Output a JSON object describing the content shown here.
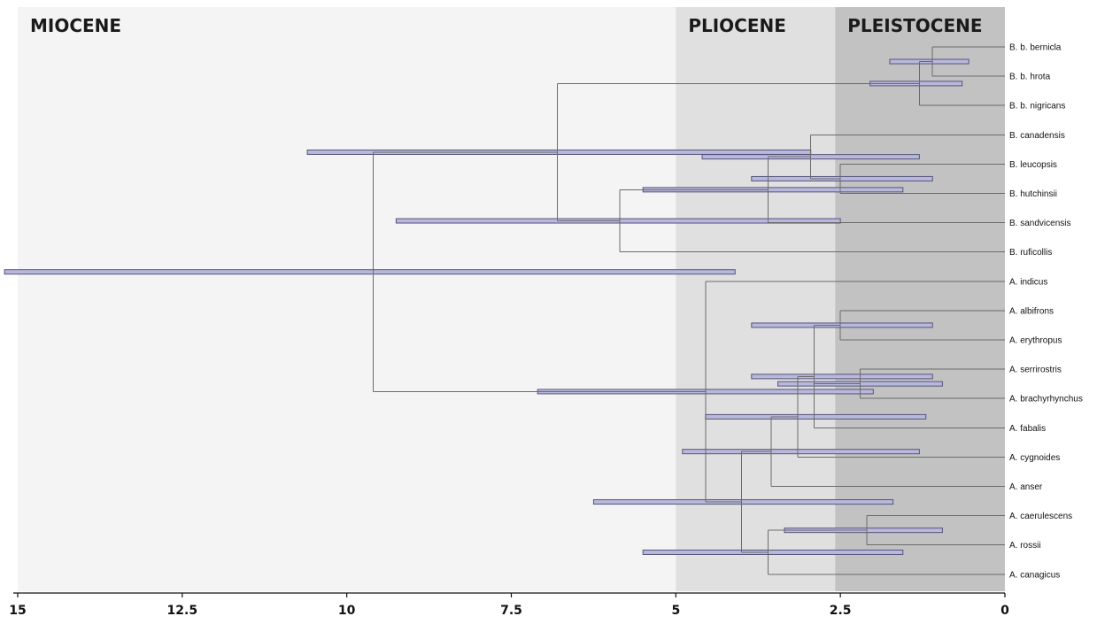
{
  "chart_data": {
    "type": "tree",
    "xlim": [
      15,
      0
    ],
    "x_ticks": [
      {
        "value": 15,
        "label": "15"
      },
      {
        "value": 12.5,
        "label": "12.5"
      },
      {
        "value": 10,
        "label": "10"
      },
      {
        "value": 7.5,
        "label": "7.5"
      },
      {
        "value": 5,
        "label": "5"
      },
      {
        "value": 2.5,
        "label": "2.5"
      },
      {
        "value": 0,
        "label": "0"
      }
    ],
    "epochs": [
      {
        "name": "MIOCENE",
        "from": 15,
        "to": 5,
        "color": "#f4f4f4"
      },
      {
        "name": "PLIOCENE",
        "from": 5,
        "to": 2.58,
        "color": "#e0e0e0"
      },
      {
        "name": "PLEISTOCENE",
        "from": 2.58,
        "to": 0,
        "color": "#c2c2c2"
      }
    ],
    "taxa": [
      "B. b. bernicla",
      "B. b. hrota",
      "B. b. nigricans",
      "B. canadensis",
      "B. leucopsis",
      "B. hutchinsii",
      "B. sandvicensis",
      "B. ruficollis",
      "A. indicus",
      "A. albifrons",
      "A. erythropus",
      "A. serrirostris",
      "A. brachyrhynchus",
      "A. fabalis",
      "A. cygnoides",
      "A. anser",
      "A. caerulescens",
      "A. rossii",
      "A. canagicus"
    ],
    "nodes": [
      {
        "age": 9.6,
        "children": [
          "n_branta",
          "n_anser"
        ]
      },
      {
        "id": "n_branta",
        "age": 6.8
      },
      {
        "id": "n_anser",
        "age": 4.55
      }
    ],
    "tree": {
      "age": 9.6,
      "hpd": [
        15.2,
        4.1
      ],
      "children": [
        {
          "age": 6.8,
          "hpd": [
            10.6,
            2.95
          ],
          "children": [
            {
              "age": 1.3,
              "hpd": [
                2.05,
                0.65
              ],
              "children": [
                {
                  "age": 1.1,
                  "hpd": [
                    1.75,
                    0.55
                  ],
                  "children": [
                    {
                      "taxon": "B. b. bernicla"
                    },
                    {
                      "taxon": "B. b. hrota"
                    }
                  ]
                },
                {
                  "taxon": "B. b. nigricans"
                }
              ]
            },
            {
              "age": 5.85,
              "hpd": [
                9.25,
                2.5
              ],
              "children": [
                {
                  "age": 3.6,
                  "hpd": [
                    5.5,
                    1.55
                  ],
                  "children": [
                    {
                      "age": 2.95,
                      "hpd": [
                        4.6,
                        1.3
                      ],
                      "children": [
                        {
                          "taxon": "B. canadensis"
                        },
                        {
                          "age": 2.5,
                          "hpd": [
                            3.85,
                            1.1
                          ],
                          "children": [
                            {
                              "taxon": "B. leucopsis"
                            },
                            {
                              "taxon": "B. hutchinsii"
                            }
                          ]
                        }
                      ]
                    },
                    {
                      "taxon": "B. sandvicensis"
                    }
                  ]
                },
                {
                  "taxon": "B. ruficollis"
                }
              ]
            }
          ]
        },
        {
          "age": 4.55,
          "hpd": [
            7.1,
            2.0
          ],
          "children": [
            {
              "taxon": "A. indicus"
            },
            {
              "age": 4.0,
              "hpd": [
                6.25,
                1.7
              ],
              "children": [
                {
                  "age": 3.55,
                  "hpd": [
                    4.9,
                    1.3
                  ],
                  "children": [
                    {
                      "age": 3.15,
                      "hpd": [
                        4.55,
                        1.2
                      ],
                      "children": [
                        {
                          "age": 2.9,
                          "hpd": [
                            3.85,
                            1.1
                          ],
                          "children": [
                            {
                              "age": 2.5,
                              "hpd": [
                                3.85,
                                1.1
                              ],
                              "children": [
                                {
                                  "taxon": "A. albifrons"
                                },
                                {
                                  "taxon": "A. erythropus"
                                }
                              ]
                            },
                            {
                              "age": 2.2,
                              "hpd": [
                                3.45,
                                0.95
                              ],
                              "children": [
                                {
                                  "taxon": "A. serrirostris"
                                },
                                {
                                  "taxon": "A. brachyrhynchus"
                                }
                              ]
                            },
                            {
                              "taxon": "A. fabalis"
                            }
                          ]
                        },
                        {
                          "taxon": "A. cygnoides"
                        }
                      ]
                    },
                    {
                      "taxon": "A. anser"
                    }
                  ]
                },
                {
                  "age": 3.6,
                  "hpd": [
                    5.5,
                    1.55
                  ],
                  "children": [
                    {
                      "age": 2.1,
                      "hpd": [
                        3.35,
                        0.95
                      ],
                      "children": [
                        {
                          "taxon": "A. caerulescens"
                        },
                        {
                          "taxon": "A. rossii"
                        }
                      ]
                    },
                    {
                      "taxon": "A. canagicus"
                    }
                  ]
                }
              ]
            }
          ]
        }
      ]
    }
  }
}
